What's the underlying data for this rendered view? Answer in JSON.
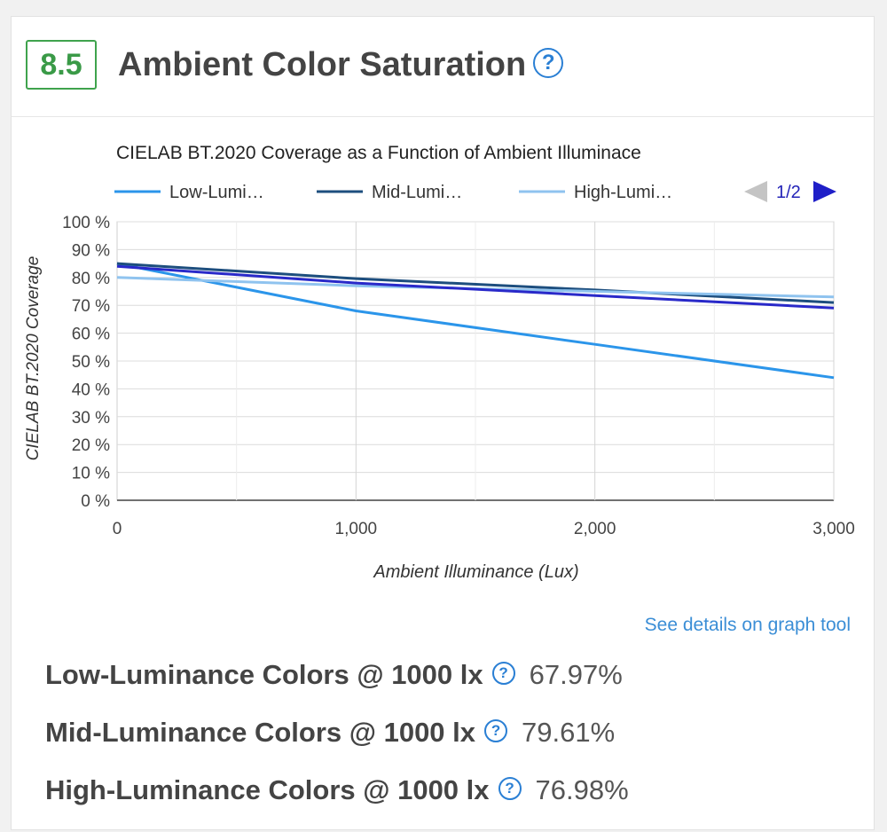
{
  "header": {
    "score": "8.5",
    "title": "Ambient Color Saturation",
    "help_glyph": "?"
  },
  "chart_data": {
    "type": "line",
    "title": "CIELAB BT.2020 Coverage as a Function of Ambient Illuminace",
    "xlabel": "Ambient Illuminance (Lux)",
    "ylabel": "CIELAB BT.2020 Coverage",
    "xlim": [
      0,
      3000
    ],
    "ylim": [
      0,
      100
    ],
    "x_ticks": [
      "0",
      "1,000",
      "2,000",
      "3,000"
    ],
    "y_ticks": [
      "0 %",
      "10 %",
      "20 %",
      "30 %",
      "40 %",
      "50 %",
      "60 %",
      "70 %",
      "80 %",
      "90 %",
      "100 %"
    ],
    "grid": true,
    "legend_position": "top",
    "legend_page": "1/2",
    "legend": [
      "Low-Lumi…",
      "Mid-Lumi…",
      "High-Lumi…"
    ],
    "series": [
      {
        "name": "Low-Luminance Colors",
        "color": "#2b95ea",
        "x": [
          0,
          1000,
          2000,
          3000
        ],
        "values": [
          85,
          68,
          56,
          44
        ]
      },
      {
        "name": "Mid-Luminance Colors",
        "color": "#1d4e7e",
        "x": [
          0,
          1000,
          2000,
          3000
        ],
        "values": [
          85,
          79.6,
          75.5,
          71
        ]
      },
      {
        "name": "High-Luminance Colors",
        "color": "#8fc3ef",
        "x": [
          0,
          1000,
          2000,
          3000
        ],
        "values": [
          80,
          77,
          75,
          73
        ]
      },
      {
        "name": "",
        "color": "#2929c9",
        "x": [
          0,
          1000,
          2000,
          3000
        ],
        "values": [
          84,
          78,
          73.5,
          69
        ]
      }
    ]
  },
  "details_link": "See details on graph tool",
  "stats": [
    {
      "label": "Low-Luminance Colors @ 1000 lx",
      "value": "67.97%"
    },
    {
      "label": "Mid-Luminance Colors @ 1000 lx",
      "value": "79.61%"
    },
    {
      "label": "High-Luminance Colors @ 1000 lx",
      "value": "76.98%"
    }
  ]
}
